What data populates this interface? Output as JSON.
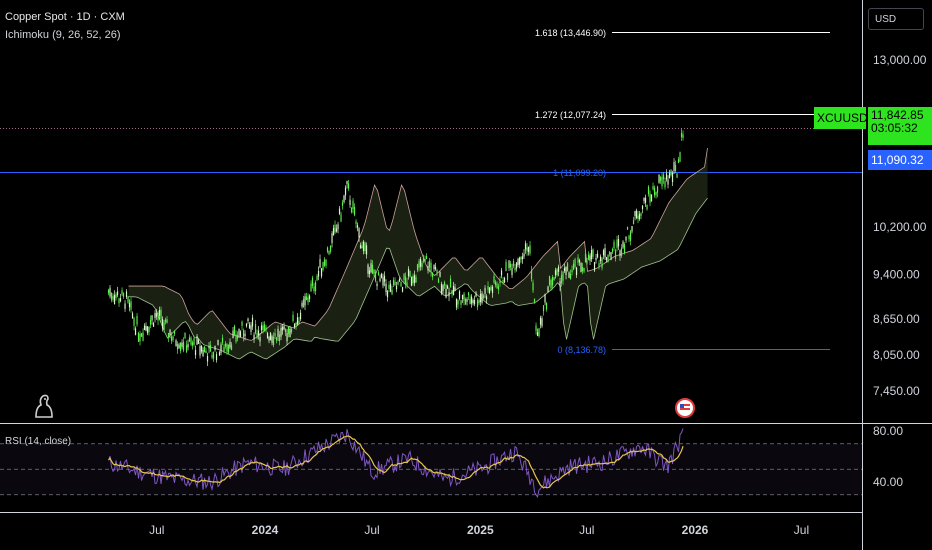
{
  "header": {
    "title": "Copper Spot · 1D · CXM",
    "indicator": "Ichimoku (9, 26, 52, 26)",
    "currency": "USD"
  },
  "rsi": {
    "label": "RSI (14, close)",
    "ticks": [
      "80.00",
      "40.00"
    ]
  },
  "price_tags": {
    "symbol": "XCUUSD",
    "price": "11,842.85",
    "countdown": "03:05:32",
    "line_price": "11,090.32"
  },
  "colors": {
    "up": "#5cf24a",
    "down": "#d7f5c8",
    "fib": "#ffffff",
    "fib_blue": "#2962ff",
    "rsi_line": "#7e57c2",
    "rsi_ma": "#e8c64a"
  },
  "chart_data": [
    {
      "type": "line",
      "title": "Copper Spot · 1D · CXM",
      "ylim": [
        7300,
        13400
      ],
      "y_ticks": [
        "13,000.00",
        "12,000.00",
        "10,200.00",
        "9,400.00",
        "8,650.00",
        "8,050.00",
        "7,450.00"
      ],
      "y_tick_values": [
        13000,
        12000,
        10200,
        9400,
        8650,
        8050,
        7450
      ],
      "x_ticks": [
        "Jul",
        "2024",
        "Jul",
        "2025",
        "Jul",
        "2026",
        "Jul"
      ],
      "x_dates": [
        "2023-07-01",
        "2024-01-01",
        "2024-07-01",
        "2025-01-01",
        "2025-07-01",
        "2026-01-01",
        "2026-07-01"
      ],
      "fib_levels": [
        {
          "label": "1.618 (13,446.90)",
          "value": 13446.9
        },
        {
          "label": "1.272 (12,077.24)",
          "value": 12077.24
        },
        {
          "label": "1 (11,099.20)",
          "value": 11099.2
        },
        {
          "label": "0 (8,136.78)",
          "value": 8136.78
        }
      ],
      "price_series": {
        "x": [
          "2023-04-10",
          "2023-05-10",
          "2023-06-01",
          "2023-07-01",
          "2023-08-01",
          "2023-09-01",
          "2023-10-01",
          "2023-11-01",
          "2023-12-01",
          "2024-01-01",
          "2024-02-01",
          "2024-03-01",
          "2024-04-01",
          "2024-05-01",
          "2024-05-20",
          "2024-06-10",
          "2024-07-01",
          "2024-08-01",
          "2024-09-01",
          "2024-10-01",
          "2024-11-01",
          "2024-12-01",
          "2025-01-01",
          "2025-02-01",
          "2025-03-01",
          "2025-03-26",
          "2025-04-08",
          "2025-05-01",
          "2025-06-01",
          "2025-07-01",
          "2025-08-01",
          "2025-09-01",
          "2025-10-01",
          "2025-11-01",
          "2025-12-01",
          "2025-12-12"
        ],
        "values": [
          9100,
          8950,
          8400,
          8700,
          8300,
          8200,
          8050,
          8250,
          8500,
          8400,
          8350,
          8700,
          9400,
          10100,
          10850,
          10000,
          9400,
          9100,
          9300,
          9600,
          9200,
          8950,
          9000,
          9250,
          9600,
          9850,
          8300,
          9300,
          9400,
          9600,
          9700,
          9900,
          10500,
          10900,
          11100,
          11842.85
        ]
      },
      "rsi_series": {
        "x": [
          "2023-04-10",
          "2023-06-01",
          "2023-08-01",
          "2023-10-01",
          "2023-12-01",
          "2024-02-01",
          "2024-04-01",
          "2024-05-20",
          "2024-07-01",
          "2024-09-01",
          "2024-11-01",
          "2025-01-01",
          "2025-03-01",
          "2025-04-08",
          "2025-06-01",
          "2025-08-01",
          "2025-10-01",
          "2025-11-15",
          "2025-12-12"
        ],
        "values": [
          55,
          48,
          42,
          40,
          55,
          50,
          66,
          78,
          48,
          58,
          42,
          50,
          64,
          35,
          52,
          56,
          68,
          52,
          78
        ]
      }
    }
  ]
}
